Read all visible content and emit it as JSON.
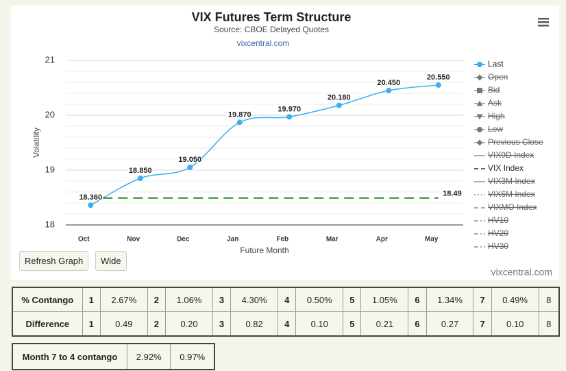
{
  "chart_data": {
    "type": "line",
    "title": "VIX Futures Term Structure",
    "subtitle": "Source: CBOE Delayed Quotes",
    "source_link": "vixcentral.com",
    "credit": "vixcentral.com",
    "x_label": "Future Month",
    "y_label": "Volatility",
    "categories": [
      "Oct",
      "Nov",
      "Dec",
      "Jan",
      "Feb",
      "Mar",
      "Apr",
      "May"
    ],
    "ylim": [
      18,
      21
    ],
    "yticks": [
      18,
      19,
      20,
      21
    ],
    "yminorticks": [
      18.2,
      18.4,
      18.6,
      18.8,
      19.2,
      19.4,
      19.6,
      19.8,
      20.2,
      20.4,
      20.6,
      20.8
    ],
    "grid": true,
    "legend": "right",
    "series": [
      {
        "name": "Last",
        "symbol": "circle",
        "color": "#3daef0",
        "hidden": false,
        "values": [
          18.36,
          18.85,
          19.05,
          19.87,
          19.97,
          20.18,
          20.45,
          20.55
        ],
        "value_labels": [
          "18.360",
          "18.850",
          "19.050",
          "19.870",
          "19.970",
          "20.180",
          "20.450",
          "20.550"
        ]
      },
      {
        "name": "Open",
        "symbol": "diamond",
        "color": "#666666",
        "hidden": true
      },
      {
        "name": "Bid",
        "symbol": "square",
        "color": "#666666",
        "hidden": true
      },
      {
        "name": "Ask",
        "symbol": "triangle",
        "color": "#666666",
        "hidden": true
      },
      {
        "name": "High",
        "symbol": "triangle-down",
        "color": "#666666",
        "hidden": true
      },
      {
        "name": "Low",
        "symbol": "circle",
        "color": "#666666",
        "hidden": true
      },
      {
        "name": "Previous Close",
        "symbol": "diamond",
        "color": "#666666",
        "hidden": true
      },
      {
        "name": "VIX9D Index",
        "symbol": "line",
        "color": "#666666",
        "hidden": true
      },
      {
        "name": "VIX Index",
        "symbol": "dash",
        "color": "#1e8c1e",
        "hidden": false,
        "value": 18.49
      },
      {
        "name": "VIX3M Index",
        "symbol": "line",
        "color": "#666666",
        "hidden": true
      },
      {
        "name": "VIX6M Index",
        "symbol": "dotted",
        "color": "#666666",
        "hidden": true
      },
      {
        "name": "VIXMO Index",
        "symbol": "dash",
        "color": "#666666",
        "hidden": true
      },
      {
        "name": "HV10",
        "symbol": "dashdot",
        "color": "#666666",
        "hidden": true
      },
      {
        "name": "HV20",
        "symbol": "dashdot",
        "color": "#666666",
        "hidden": true
      },
      {
        "name": "HV30",
        "symbol": "dashdot",
        "color": "#666666",
        "hidden": true
      }
    ]
  },
  "buttons": [
    "Refresh Graph",
    "Wide"
  ],
  "contango_table": {
    "rows": [
      [
        "% Contango",
        "1",
        "2.67%",
        "2",
        "1.06%",
        "3",
        "4.30%",
        "4",
        "0.50%",
        "5",
        "1.05%",
        "6",
        "1.34%",
        "7",
        "0.49%",
        "8"
      ],
      [
        "Difference",
        "1",
        "0.49",
        "2",
        "0.20",
        "3",
        "0.82",
        "4",
        "0.10",
        "5",
        "0.21",
        "6",
        "0.27",
        "7",
        "0.10",
        "8"
      ]
    ]
  },
  "summary_table": {
    "rows": [
      [
        "Month 7 to 4 contango",
        "2.92%",
        "0.97%"
      ]
    ]
  }
}
